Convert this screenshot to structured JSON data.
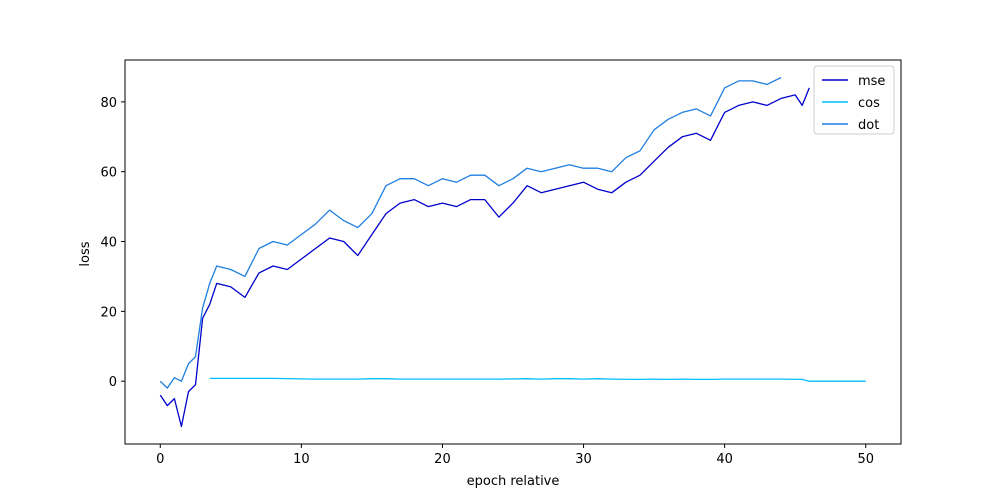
{
  "chart_data": {
    "type": "line",
    "title": "",
    "xlabel": "epoch relative",
    "ylabel": "loss",
    "xlim": [
      -2.5,
      52.5
    ],
    "ylim": [
      -18,
      92
    ],
    "xticks": [
      0,
      10,
      20,
      30,
      40,
      50
    ],
    "yticks": [
      0,
      20,
      40,
      60,
      80
    ],
    "grid": false,
    "legend": {
      "placement": "top-right",
      "entries": [
        "mse",
        "cos",
        "dot"
      ]
    },
    "series": [
      {
        "name": "mse",
        "color": "#0000cc",
        "x": [
          0,
          0.5,
          1,
          1.5,
          2,
          2.5,
          3,
          3.5,
          4,
          5,
          6,
          7,
          8,
          9,
          10,
          11,
          12,
          13,
          14,
          15,
          16,
          17,
          18,
          19,
          20,
          21,
          22,
          23,
          24,
          25,
          26,
          27,
          28,
          29,
          30,
          31,
          32,
          33,
          34,
          35,
          36,
          37,
          38,
          39,
          40,
          41,
          42,
          43,
          44,
          45,
          45.5,
          46
        ],
        "y": [
          -4,
          -7,
          -5,
          -13,
          -3,
          -1,
          18,
          22,
          28,
          27,
          24,
          31,
          33,
          32,
          35,
          38,
          41,
          40,
          36,
          42,
          48,
          51,
          52,
          50,
          51,
          50,
          52,
          52,
          47,
          51,
          56,
          54,
          55,
          56,
          57,
          55,
          54,
          57,
          59,
          63,
          67,
          70,
          71,
          69,
          77,
          79,
          80,
          79,
          81,
          82,
          79,
          84
        ]
      },
      {
        "name": "cos",
        "color": "#00bfff",
        "x": [
          3.5,
          6,
          7,
          8,
          11,
          12,
          14,
          15,
          16,
          17,
          18,
          21,
          24,
          26,
          27,
          28,
          29,
          30,
          31,
          32,
          34,
          35,
          36,
          37,
          38,
          39,
          40,
          41,
          44,
          45.5,
          46,
          47,
          48,
          49,
          50
        ],
        "y": [
          0.8,
          0.8,
          0.8,
          0.8,
          0.6,
          0.6,
          0.6,
          0.7,
          0.7,
          0.6,
          0.6,
          0.6,
          0.6,
          0.7,
          0.6,
          0.7,
          0.7,
          0.6,
          0.7,
          0.6,
          0.5,
          0.6,
          0.5,
          0.6,
          0.5,
          0.5,
          0.6,
          0.6,
          0.6,
          0.5,
          0,
          0,
          0,
          0,
          0
        ]
      },
      {
        "name": "dot",
        "color": "#1f7fe0",
        "x": [
          0,
          0.5,
          1,
          1.5,
          2,
          2.5,
          3,
          3.5,
          4,
          5,
          6,
          7,
          8,
          9,
          10,
          11,
          12,
          13,
          14,
          15,
          16,
          17,
          18,
          19,
          20,
          21,
          22,
          23,
          24,
          25,
          26,
          27,
          28,
          29,
          30,
          31,
          32,
          33,
          34,
          35,
          36,
          37,
          38,
          39,
          40,
          41,
          42,
          43,
          44
        ],
        "y": [
          0,
          -2,
          1,
          0,
          5,
          7,
          21,
          28,
          33,
          32,
          30,
          38,
          40,
          39,
          42,
          45,
          49,
          46,
          44,
          48,
          56,
          58,
          58,
          56,
          58,
          57,
          59,
          59,
          56,
          58,
          61,
          60,
          61,
          62,
          61,
          61,
          60,
          64,
          66,
          72,
          75,
          77,
          78,
          76,
          84,
          86,
          86,
          85,
          87
        ]
      }
    ]
  }
}
